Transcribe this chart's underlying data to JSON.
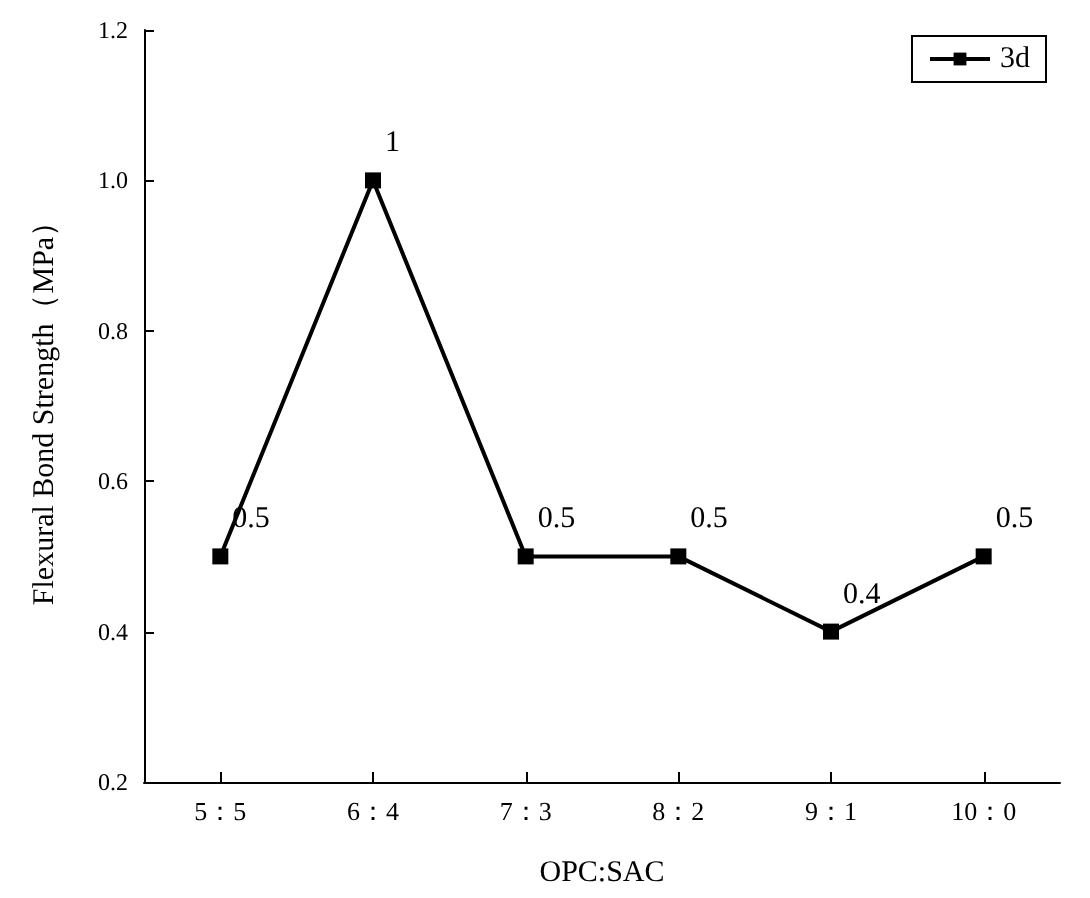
{
  "chart_data": {
    "type": "line",
    "xlabel": "OPC:SAC",
    "ylabel": "Flexural Bond Strength（MPa）",
    "categories": [
      "5：5",
      "6：4",
      "7：3",
      "8：2",
      "9：1",
      "10：0"
    ],
    "series": [
      {
        "name": "3d",
        "color": "#000000",
        "values": [
          0.5,
          1,
          0.5,
          0.5,
          0.4,
          0.5
        ]
      }
    ],
    "ylim": [
      0.2,
      1.2
    ],
    "yticks": [
      0.2,
      0.4,
      0.6,
      0.8,
      {
        "value": 1,
        "label": "1.0"
      },
      1.2
    ],
    "data_labels": true,
    "legend": "top right",
    "marker": "square",
    "line_style": "solid",
    "grid": false
  }
}
